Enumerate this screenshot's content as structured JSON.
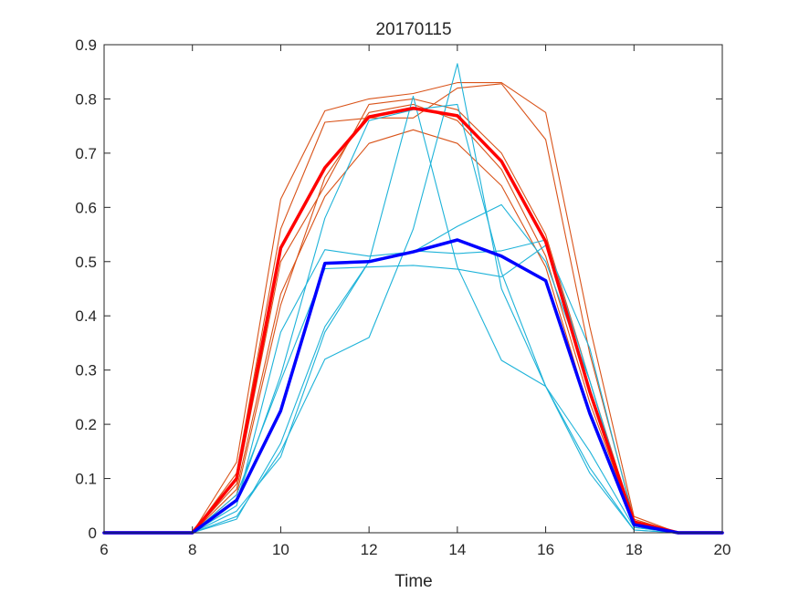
{
  "chart_data": {
    "type": "line",
    "title": "20170115",
    "xlabel": "Time",
    "ylabel": "",
    "xlim": [
      6,
      20
    ],
    "ylim": [
      0,
      0.9
    ],
    "xticks": [
      6,
      8,
      10,
      12,
      14,
      16,
      18,
      20
    ],
    "yticks": [
      0,
      0.1,
      0.2,
      0.3,
      0.4,
      0.5,
      0.6,
      0.7,
      0.8,
      0.9
    ],
    "ytick_labels": [
      "0",
      "0.1",
      "0.2",
      "0.3",
      "0.4",
      "0.5",
      "0.6",
      "0.7",
      "0.8",
      "0.9"
    ],
    "grid": false,
    "legend": "none",
    "x": [
      6,
      7,
      8,
      9,
      10,
      11,
      12,
      13,
      14,
      15,
      16,
      17,
      18,
      19,
      20
    ],
    "series": [
      {
        "color": "#D95319",
        "bold": false,
        "values": [
          0,
          0,
          0,
          0.13,
          0.615,
          0.778,
          0.8,
          0.81,
          0.83,
          0.83,
          0.775,
          0.38,
          0.03,
          0,
          0
        ]
      },
      {
        "color": "#D95319",
        "bold": false,
        "values": [
          0,
          0,
          0,
          0.11,
          0.56,
          0.757,
          0.765,
          0.765,
          0.82,
          0.828,
          0.725,
          0.33,
          0.025,
          0,
          0
        ]
      },
      {
        "color": "#D95319",
        "bold": false,
        "values": [
          0,
          0,
          0,
          0.09,
          0.5,
          0.64,
          0.79,
          0.8,
          0.78,
          0.7,
          0.55,
          0.28,
          0.02,
          0,
          0
        ]
      },
      {
        "color": "#D95319",
        "bold": false,
        "values": [
          0,
          0,
          0,
          0.08,
          0.44,
          0.62,
          0.718,
          0.743,
          0.718,
          0.64,
          0.49,
          0.22,
          0.015,
          0,
          0
        ]
      },
      {
        "color": "#D95319",
        "bold": false,
        "values": [
          0,
          0,
          0,
          0.07,
          0.42,
          0.655,
          0.775,
          0.79,
          0.76,
          0.67,
          0.51,
          0.24,
          0.018,
          0,
          0
        ]
      },
      {
        "color": "#1EB3D9",
        "bold": false,
        "values": [
          0,
          0,
          0,
          0.05,
          0.37,
          0.522,
          0.51,
          0.518,
          0.565,
          0.605,
          0.5,
          0.28,
          0.01,
          0,
          0
        ]
      },
      {
        "color": "#1EB3D9",
        "bold": false,
        "values": [
          0,
          0,
          0,
          0.07,
          0.28,
          0.487,
          0.49,
          0.493,
          0.486,
          0.472,
          0.53,
          0.34,
          0.02,
          0,
          0
        ]
      },
      {
        "color": "#1EB3D9",
        "bold": false,
        "values": [
          0,
          0,
          0,
          0.03,
          0.15,
          0.32,
          0.36,
          0.56,
          0.865,
          0.45,
          0.27,
          0.12,
          0.005,
          0,
          0
        ]
      },
      {
        "color": "#1EB3D9",
        "bold": false,
        "values": [
          0,
          0,
          0,
          0.025,
          0.165,
          0.38,
          0.5,
          0.52,
          0.515,
          0.52,
          0.54,
          0.28,
          0.015,
          0,
          0
        ]
      },
      {
        "color": "#1EB3D9",
        "bold": false,
        "values": [
          0,
          0,
          0,
          0.06,
          0.29,
          0.58,
          0.76,
          0.78,
          0.79,
          0.48,
          0.27,
          0.15,
          0.01,
          0,
          0
        ]
      },
      {
        "color": "#1EB3D9",
        "bold": false,
        "values": [
          0,
          0,
          0,
          0.04,
          0.14,
          0.37,
          0.5,
          0.805,
          0.49,
          0.318,
          0.27,
          0.11,
          0.005,
          0,
          0
        ]
      },
      {
        "color": "#FF0000",
        "bold": true,
        "values": [
          0,
          0,
          0,
          0.1,
          0.525,
          0.673,
          0.767,
          0.783,
          0.769,
          0.685,
          0.537,
          0.26,
          0.02,
          0,
          0
        ]
      },
      {
        "color": "#0000FF",
        "bold": true,
        "values": [
          0,
          0,
          0,
          0.06,
          0.225,
          0.497,
          0.5,
          0.518,
          0.54,
          0.51,
          0.465,
          0.22,
          0.015,
          0,
          0
        ]
      }
    ]
  }
}
